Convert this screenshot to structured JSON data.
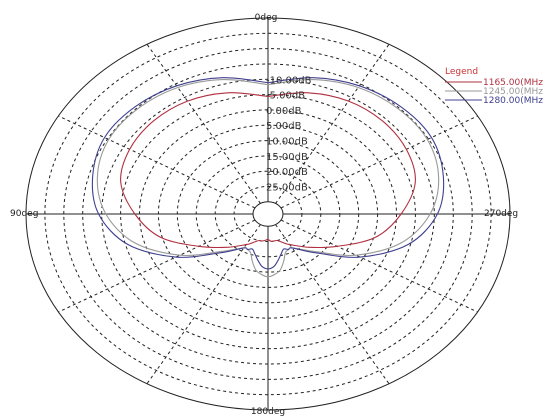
{
  "chart_data": {
    "type": "polar",
    "title": "",
    "angle_labels": {
      "top": "0deg",
      "left": "90deg",
      "right": "270deg",
      "bottom": "180deg"
    },
    "radial_unit": "dB",
    "radial_ticks": [
      {
        "value": -10.0,
        "label": "-10.00dB"
      },
      {
        "value": -5.0,
        "label": "-5.00dB"
      },
      {
        "value": 0.0,
        "label": "0.00dB"
      },
      {
        "value": 5.0,
        "label": "5.00dB"
      },
      {
        "value": 10.0,
        "label": "10.00dB"
      },
      {
        "value": 15.0,
        "label": "15.00dB"
      },
      {
        "value": 20.0,
        "label": "20.00dB"
      },
      {
        "value": 25.0,
        "label": "25.00dB"
      }
    ],
    "outer_grid_rings": 4,
    "grid_spoke_step_deg": 30,
    "grid": true,
    "legend": {
      "title": "Legend",
      "placement": "top-right",
      "entries": [
        "1165.00(MHz",
        "1245.00(MHz",
        "1280.00(MHz"
      ]
    },
    "series": [
      {
        "name": "1165.00(MHz",
        "color": "#b03040",
        "theta_deg": [
          0,
          15,
          30,
          45,
          60,
          75,
          90,
          105,
          120,
          135,
          150,
          155,
          160,
          165,
          170,
          175,
          180,
          185,
          190,
          195,
          200,
          205,
          210,
          225,
          240,
          255,
          270,
          285,
          300,
          315,
          330,
          345,
          360
        ],
        "r_norm": [
          0.6,
          0.64,
          0.665,
          0.67,
          0.66,
          0.63,
          0.55,
          0.46,
          0.33,
          0.24,
          0.18,
          0.165,
          0.15,
          0.14,
          0.14,
          0.135,
          0.13,
          0.14,
          0.14,
          0.14,
          0.15,
          0.165,
          0.18,
          0.24,
          0.33,
          0.46,
          0.55,
          0.63,
          0.66,
          0.67,
          0.665,
          0.64,
          0.6
        ]
      },
      {
        "name": "1245.00(MHz",
        "color": "#999999",
        "theta_deg": [
          0,
          15,
          30,
          45,
          60,
          75,
          90,
          105,
          120,
          135,
          150,
          155,
          160,
          165,
          170,
          175,
          180,
          185,
          190,
          195,
          200,
          205,
          210,
          225,
          240,
          255,
          270,
          285,
          300,
          315,
          330,
          345,
          360
        ],
        "r_norm": [
          0.66,
          0.71,
          0.745,
          0.76,
          0.76,
          0.73,
          0.67,
          0.57,
          0.42,
          0.27,
          0.2,
          0.2,
          0.21,
          0.25,
          0.29,
          0.31,
          0.32,
          0.31,
          0.29,
          0.25,
          0.21,
          0.2,
          0.2,
          0.27,
          0.42,
          0.57,
          0.67,
          0.73,
          0.76,
          0.76,
          0.745,
          0.71,
          0.66
        ]
      },
      {
        "name": "1280.00(MHz",
        "color": "#404090",
        "theta_deg": [
          0,
          15,
          30,
          45,
          60,
          75,
          90,
          105,
          120,
          135,
          150,
          155,
          160,
          165,
          170,
          175,
          180,
          185,
          190,
          195,
          200,
          205,
          210,
          225,
          240,
          255,
          270,
          285,
          300,
          315,
          330,
          345,
          360
        ],
        "r_norm": [
          0.67,
          0.72,
          0.755,
          0.775,
          0.78,
          0.75,
          0.7,
          0.6,
          0.44,
          0.28,
          0.2,
          0.2,
          0.19,
          0.21,
          0.24,
          0.27,
          0.28,
          0.27,
          0.24,
          0.21,
          0.19,
          0.2,
          0.2,
          0.28,
          0.44,
          0.6,
          0.7,
          0.75,
          0.78,
          0.775,
          0.755,
          0.72,
          0.67
        ]
      }
    ]
  }
}
